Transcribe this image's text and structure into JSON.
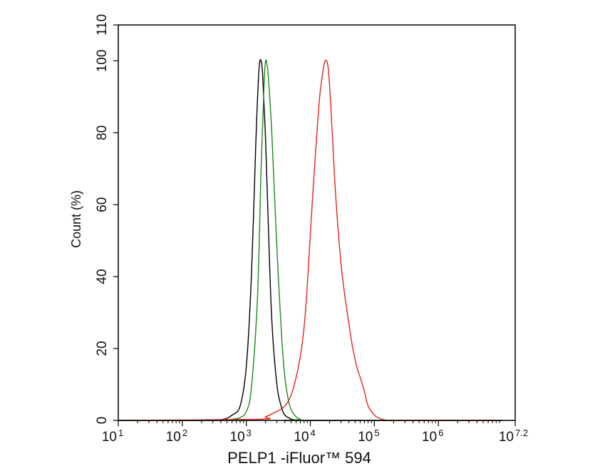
{
  "chart_data": {
    "type": "line",
    "xscale": "log10",
    "xlim": [
      10,
      15848931.92
    ],
    "ylim": [
      0,
      110
    ],
    "xlabel": "PELP1 -iFluor™ 594",
    "ylabel": "Count  (%)",
    "x_ticks": [
      {
        "base": "10",
        "exp": "1",
        "value": 10
      },
      {
        "base": "10",
        "exp": "2",
        "value": 100
      },
      {
        "base": "10",
        "exp": "3",
        "value": 1000
      },
      {
        "base": "10",
        "exp": "4",
        "value": 10000
      },
      {
        "base": "10",
        "exp": "5",
        "value": 100000
      },
      {
        "base": "10",
        "exp": "6",
        "value": 1000000
      },
      {
        "base": "10",
        "exp": "7.2",
        "value": 15848931.92
      }
    ],
    "y_ticks": [
      0,
      20,
      40,
      60,
      80,
      100,
      110
    ],
    "series": [
      {
        "color": "#000000",
        "x": [
          10,
          300,
          400,
          500,
          600,
          800,
          1000,
          1200,
          1400,
          1500,
          1600,
          1700,
          1800,
          2000,
          2200,
          2500,
          3000,
          3500,
          4000,
          5000,
          6000,
          7000,
          10000000
        ],
        "y": [
          0,
          0,
          0.2,
          0.6,
          1.5,
          4,
          15,
          40,
          76,
          90,
          99,
          100,
          96,
          78,
          55,
          28,
          10,
          4,
          1.5,
          0.4,
          0.1,
          0,
          0
        ]
      },
      {
        "color": "#1a8a1a",
        "x": [
          10,
          400,
          600,
          800,
          1000,
          1200,
          1500,
          1700,
          1900,
          2000,
          2100,
          2200,
          2500,
          2800,
          3200,
          3600,
          4000,
          4500,
          5000,
          6000,
          7000,
          8000,
          10000000
        ],
        "y": [
          0,
          0,
          0.3,
          0.8,
          2.5,
          9,
          35,
          70,
          94,
          100,
          99,
          96,
          80,
          60,
          38,
          22,
          12,
          6,
          3,
          1,
          0.3,
          0,
          0
        ]
      },
      {
        "color": "#e8231c",
        "x": [
          10,
          1500,
          2000,
          3000,
          4000,
          5000,
          6000,
          7000,
          8000,
          9000,
          10000,
          12000,
          14000,
          16000,
          17000,
          18000,
          19000,
          20000,
          22000,
          25000,
          30000,
          35000,
          40000,
          45000,
          50000,
          55000,
          60000,
          70000,
          80000,
          100000,
          120000,
          150000,
          180000,
          10000000
        ],
        "y": [
          0,
          0.3,
          1,
          2.5,
          4,
          7,
          12,
          18,
          26,
          38,
          52,
          74,
          90,
          98,
          100,
          100,
          98,
          93,
          80,
          62,
          44,
          34,
          27,
          21,
          17,
          14,
          12,
          8,
          4,
          1.5,
          0.6,
          0.1,
          0,
          0
        ]
      }
    ]
  }
}
